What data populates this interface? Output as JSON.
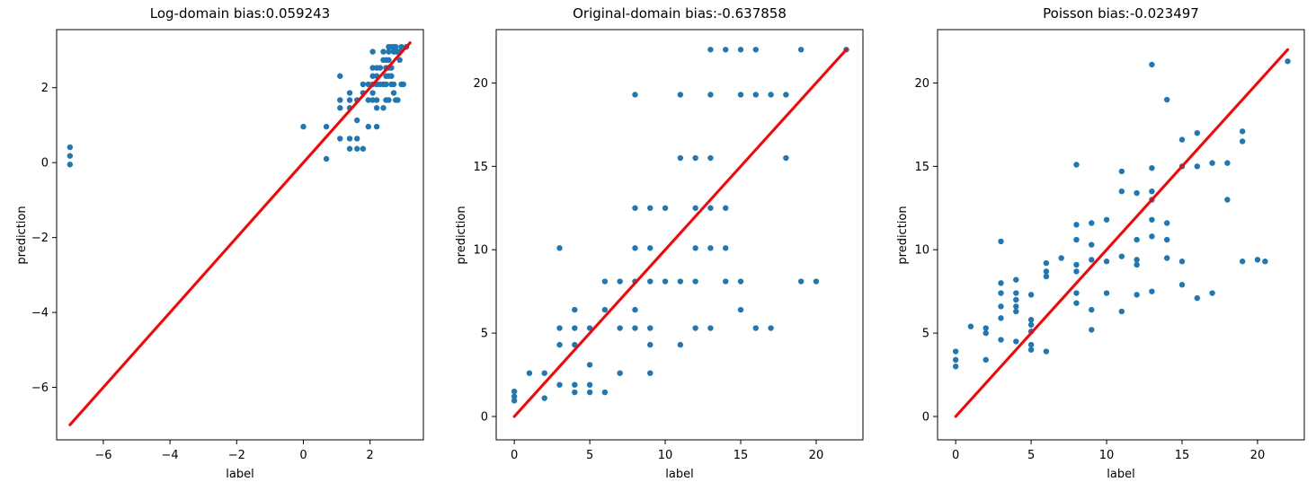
{
  "figure": {
    "background": "#ffffff",
    "point_color": "#1f77b4",
    "line_color": "#ff0000",
    "axis_color": "#000000"
  },
  "chart_data": [
    {
      "type": "scatter",
      "title": "Log-domain bias:0.059243",
      "xlabel": "label",
      "ylabel": "prediction",
      "xlim": [
        -7.4,
        3.6
      ],
      "ylim": [
        -7.4,
        3.55
      ],
      "xtick_values": [
        -6,
        -4,
        -2,
        0,
        2
      ],
      "xtick_labels": [
        "−6",
        "−4",
        "−2",
        "0",
        "2"
      ],
      "ytick_values": [
        2,
        0,
        -2,
        -4,
        -6
      ],
      "ytick_labels": [
        "2",
        "0",
        "−2",
        "−4",
        "−6"
      ],
      "identity_line": {
        "x1": -7,
        "y1": -7,
        "x2": 3.2,
        "y2": 3.2
      },
      "points": [
        [
          2.56,
          3.09
        ],
        [
          2.64,
          3.09
        ],
        [
          2.71,
          3.09
        ],
        [
          2.77,
          3.09
        ],
        [
          2.94,
          3.09
        ],
        [
          3.09,
          3.09
        ],
        [
          2.08,
          2.96
        ],
        [
          2.4,
          2.96
        ],
        [
          2.56,
          2.96
        ],
        [
          2.71,
          2.96
        ],
        [
          2.77,
          2.96
        ],
        [
          2.83,
          2.96
        ],
        [
          2.89,
          2.96
        ],
        [
          2.4,
          2.74
        ],
        [
          2.48,
          2.74
        ],
        [
          2.56,
          2.74
        ],
        [
          2.89,
          2.74
        ],
        [
          2.08,
          2.53
        ],
        [
          2.2,
          2.53
        ],
        [
          2.3,
          2.53
        ],
        [
          2.48,
          2.53
        ],
        [
          2.56,
          2.53
        ],
        [
          2.64,
          2.53
        ],
        [
          1.1,
          2.31
        ],
        [
          2.08,
          2.31
        ],
        [
          2.2,
          2.31
        ],
        [
          2.48,
          2.31
        ],
        [
          2.56,
          2.31
        ],
        [
          2.64,
          2.31
        ],
        [
          1.79,
          2.09
        ],
        [
          1.95,
          2.09
        ],
        [
          2.08,
          2.09
        ],
        [
          2.2,
          2.09
        ],
        [
          2.3,
          2.09
        ],
        [
          2.4,
          2.09
        ],
        [
          2.48,
          2.09
        ],
        [
          2.64,
          2.09
        ],
        [
          2.71,
          2.09
        ],
        [
          2.94,
          2.09
        ],
        [
          3.0,
          2.09
        ],
        [
          1.39,
          1.86
        ],
        [
          1.79,
          1.86
        ],
        [
          2.08,
          1.86
        ],
        [
          2.71,
          1.86
        ],
        [
          1.1,
          1.67
        ],
        [
          1.39,
          1.67
        ],
        [
          1.61,
          1.67
        ],
        [
          1.95,
          1.67
        ],
        [
          2.08,
          1.67
        ],
        [
          2.2,
          1.67
        ],
        [
          2.48,
          1.67
        ],
        [
          2.56,
          1.67
        ],
        [
          2.77,
          1.67
        ],
        [
          2.83,
          1.67
        ],
        [
          1.1,
          1.46
        ],
        [
          1.39,
          1.46
        ],
        [
          2.2,
          1.46
        ],
        [
          2.4,
          1.46
        ],
        [
          1.61,
          1.13
        ],
        [
          0.0,
          0.96
        ],
        [
          0.69,
          0.96
        ],
        [
          1.95,
          0.96
        ],
        [
          2.2,
          0.96
        ],
        [
          1.1,
          0.64
        ],
        [
          1.39,
          0.64
        ],
        [
          1.61,
          0.64
        ],
        [
          1.39,
          0.37
        ],
        [
          1.61,
          0.37
        ],
        [
          1.79,
          0.37
        ],
        [
          0.69,
          0.1
        ],
        [
          -7,
          0.41
        ],
        [
          -7,
          0.18
        ],
        [
          -7,
          -0.05
        ]
      ]
    },
    {
      "type": "scatter",
      "title": "Original-domain bias:-0.637858",
      "xlabel": "label",
      "ylabel": "prediction",
      "xlim": [
        -1.2,
        23.1
      ],
      "ylim": [
        -1.4,
        23.2
      ],
      "xtick_values": [
        0,
        5,
        10,
        15,
        20
      ],
      "xtick_labels": [
        "0",
        "5",
        "10",
        "15",
        "20"
      ],
      "ytick_values": [
        0,
        5,
        10,
        15,
        20
      ],
      "ytick_labels": [
        "0",
        "5",
        "10",
        "15",
        "20"
      ],
      "identity_line": {
        "x1": 0,
        "y1": 0,
        "x2": 22,
        "y2": 22
      },
      "points": [
        [
          13,
          22
        ],
        [
          14,
          22
        ],
        [
          15,
          22
        ],
        [
          16,
          22
        ],
        [
          19,
          22
        ],
        [
          22,
          22
        ],
        [
          8,
          19.3
        ],
        [
          11,
          19.3
        ],
        [
          13,
          19.3
        ],
        [
          15,
          19.3
        ],
        [
          16,
          19.3
        ],
        [
          17,
          19.3
        ],
        [
          18,
          19.3
        ],
        [
          11,
          15.5
        ],
        [
          12,
          15.5
        ],
        [
          13,
          15.5
        ],
        [
          18,
          15.5
        ],
        [
          8,
          12.5
        ],
        [
          9,
          12.5
        ],
        [
          10,
          12.5
        ],
        [
          12,
          12.5
        ],
        [
          13,
          12.5
        ],
        [
          14,
          12.5
        ],
        [
          3,
          10.1
        ],
        [
          8,
          10.1
        ],
        [
          9,
          10.1
        ],
        [
          12,
          10.1
        ],
        [
          13,
          10.1
        ],
        [
          14,
          10.1
        ],
        [
          6,
          8.1
        ],
        [
          7,
          8.1
        ],
        [
          8,
          8.1
        ],
        [
          9,
          8.1
        ],
        [
          10,
          8.1
        ],
        [
          11,
          8.1
        ],
        [
          12,
          8.1
        ],
        [
          14,
          8.1
        ],
        [
          15,
          8.1
        ],
        [
          19,
          8.1
        ],
        [
          20,
          8.1
        ],
        [
          4,
          6.4
        ],
        [
          6,
          6.4
        ],
        [
          8,
          6.4
        ],
        [
          15,
          6.4
        ],
        [
          3,
          5.3
        ],
        [
          4,
          5.3
        ],
        [
          5,
          5.3
        ],
        [
          7,
          5.3
        ],
        [
          8,
          5.3
        ],
        [
          9,
          5.3
        ],
        [
          12,
          5.3
        ],
        [
          13,
          5.3
        ],
        [
          16,
          5.3
        ],
        [
          17,
          5.3
        ],
        [
          3,
          4.3
        ],
        [
          4,
          4.3
        ],
        [
          9,
          4.3
        ],
        [
          11,
          4.3
        ],
        [
          5,
          3.1
        ],
        [
          1,
          2.6
        ],
        [
          2,
          2.6
        ],
        [
          7,
          2.6
        ],
        [
          9,
          2.6
        ],
        [
          3,
          1.9
        ],
        [
          4,
          1.9
        ],
        [
          5,
          1.9
        ],
        [
          4,
          1.45
        ],
        [
          5,
          1.45
        ],
        [
          6,
          1.45
        ],
        [
          2,
          1.1
        ],
        [
          0,
          1.5
        ],
        [
          0,
          1.2
        ],
        [
          0,
          0.95
        ]
      ]
    },
    {
      "type": "scatter",
      "title": "Poisson bias:-0.023497",
      "xlabel": "label",
      "ylabel": "prediction",
      "xlim": [
        -1.2,
        23.1
      ],
      "ylim": [
        -1.4,
        23.2
      ],
      "xtick_values": [
        0,
        5,
        10,
        15,
        20
      ],
      "xtick_labels": [
        "0",
        "5",
        "10",
        "15",
        "20"
      ],
      "ytick_values": [
        0,
        5,
        10,
        15,
        20
      ],
      "ytick_labels": [
        "0",
        "5",
        "10",
        "15",
        "20"
      ],
      "identity_line": {
        "x1": 0,
        "y1": 0,
        "x2": 22,
        "y2": 22
      },
      "points": [
        [
          0,
          3.9
        ],
        [
          0,
          3.4
        ],
        [
          0,
          3.0
        ],
        [
          1,
          5.4
        ],
        [
          2,
          5.3
        ],
        [
          2,
          5.0
        ],
        [
          2,
          3.4
        ],
        [
          3,
          10.5
        ],
        [
          3,
          8.0
        ],
        [
          3,
          7.4
        ],
        [
          3,
          6.6
        ],
        [
          3,
          5.9
        ],
        [
          3,
          4.6
        ],
        [
          4,
          8.2
        ],
        [
          4,
          7.4
        ],
        [
          4,
          7.0
        ],
        [
          4,
          6.6
        ],
        [
          4,
          6.3
        ],
        [
          4,
          4.5
        ],
        [
          5,
          7.3
        ],
        [
          5,
          5.8
        ],
        [
          5,
          5.5
        ],
        [
          5,
          5.1
        ],
        [
          5,
          4.3
        ],
        [
          5,
          4.0
        ],
        [
          6,
          9.2
        ],
        [
          6,
          8.7
        ],
        [
          6,
          8.4
        ],
        [
          6,
          3.9
        ],
        [
          7,
          9.5
        ],
        [
          8,
          15.1
        ],
        [
          8,
          11.5
        ],
        [
          8,
          10.6
        ],
        [
          8,
          9.1
        ],
        [
          8,
          8.7
        ],
        [
          8,
          7.4
        ],
        [
          8,
          6.8
        ],
        [
          9,
          11.6
        ],
        [
          9,
          10.3
        ],
        [
          9,
          9.4
        ],
        [
          9,
          6.4
        ],
        [
          9,
          5.2
        ],
        [
          10,
          11.8
        ],
        [
          10,
          9.3
        ],
        [
          10,
          7.4
        ],
        [
          11,
          14.7
        ],
        [
          11,
          13.5
        ],
        [
          11,
          9.6
        ],
        [
          11,
          6.3
        ],
        [
          12,
          13.4
        ],
        [
          12,
          10.6
        ],
        [
          12,
          9.4
        ],
        [
          12,
          9.1
        ],
        [
          12,
          7.3
        ],
        [
          13,
          21.1
        ],
        [
          13,
          14.9
        ],
        [
          13,
          13.5
        ],
        [
          13,
          13.0
        ],
        [
          13,
          11.8
        ],
        [
          13,
          10.8
        ],
        [
          13,
          7.5
        ],
        [
          14,
          19.0
        ],
        [
          14,
          11.6
        ],
        [
          14,
          10.6
        ],
        [
          14,
          9.5
        ],
        [
          15,
          16.6
        ],
        [
          15,
          15.0
        ],
        [
          15,
          9.3
        ],
        [
          15,
          7.9
        ],
        [
          16,
          17.0
        ],
        [
          16,
          15.0
        ],
        [
          16,
          7.1
        ],
        [
          17,
          15.2
        ],
        [
          17,
          7.4
        ],
        [
          18,
          15.2
        ],
        [
          18,
          13.0
        ],
        [
          19,
          17.1
        ],
        [
          19,
          16.5
        ],
        [
          19,
          9.3
        ],
        [
          20,
          9.4
        ],
        [
          20.5,
          9.3
        ],
        [
          22,
          21.3
        ]
      ]
    }
  ]
}
